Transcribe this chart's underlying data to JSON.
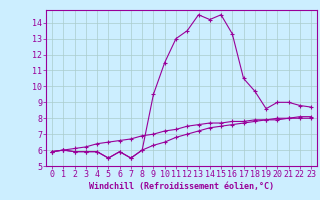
{
  "xlabel": "Windchill (Refroidissement éolien,°C)",
  "x": [
    0,
    1,
    2,
    3,
    4,
    5,
    6,
    7,
    8,
    9,
    10,
    11,
    12,
    13,
    14,
    15,
    16,
    17,
    18,
    19,
    20,
    21,
    22,
    23
  ],
  "line1": [
    5.9,
    6.0,
    5.9,
    5.9,
    5.9,
    5.5,
    5.9,
    5.5,
    6.0,
    9.5,
    11.5,
    13.0,
    13.5,
    14.5,
    14.2,
    14.5,
    13.3,
    10.5,
    9.7,
    8.6,
    9.0,
    9.0,
    8.8,
    8.7
  ],
  "line2": [
    5.9,
    6.0,
    5.9,
    5.9,
    5.9,
    5.5,
    5.9,
    5.5,
    6.0,
    6.3,
    6.5,
    6.8,
    7.0,
    7.2,
    7.4,
    7.5,
    7.6,
    7.7,
    7.8,
    7.9,
    7.9,
    8.0,
    8.0,
    8.0
  ],
  "line3": [
    5.9,
    6.0,
    6.1,
    6.2,
    6.4,
    6.5,
    6.6,
    6.7,
    6.9,
    7.0,
    7.2,
    7.3,
    7.5,
    7.6,
    7.7,
    7.7,
    7.8,
    7.8,
    7.9,
    7.9,
    8.0,
    8.0,
    8.1,
    8.1
  ],
  "line_color": "#990099",
  "bg_color": "#cceeff",
  "grid_color": "#aacccc",
  "ylim": [
    5,
    14.8
  ],
  "xlim": [
    -0.5,
    23.5
  ],
  "yticks": [
    5,
    6,
    7,
    8,
    9,
    10,
    11,
    12,
    13,
    14
  ],
  "xticks": [
    0,
    1,
    2,
    3,
    4,
    5,
    6,
    7,
    8,
    9,
    10,
    11,
    12,
    13,
    14,
    15,
    16,
    17,
    18,
    19,
    20,
    21,
    22,
    23
  ],
  "tick_fontsize": 6,
  "xlabel_fontsize": 6
}
